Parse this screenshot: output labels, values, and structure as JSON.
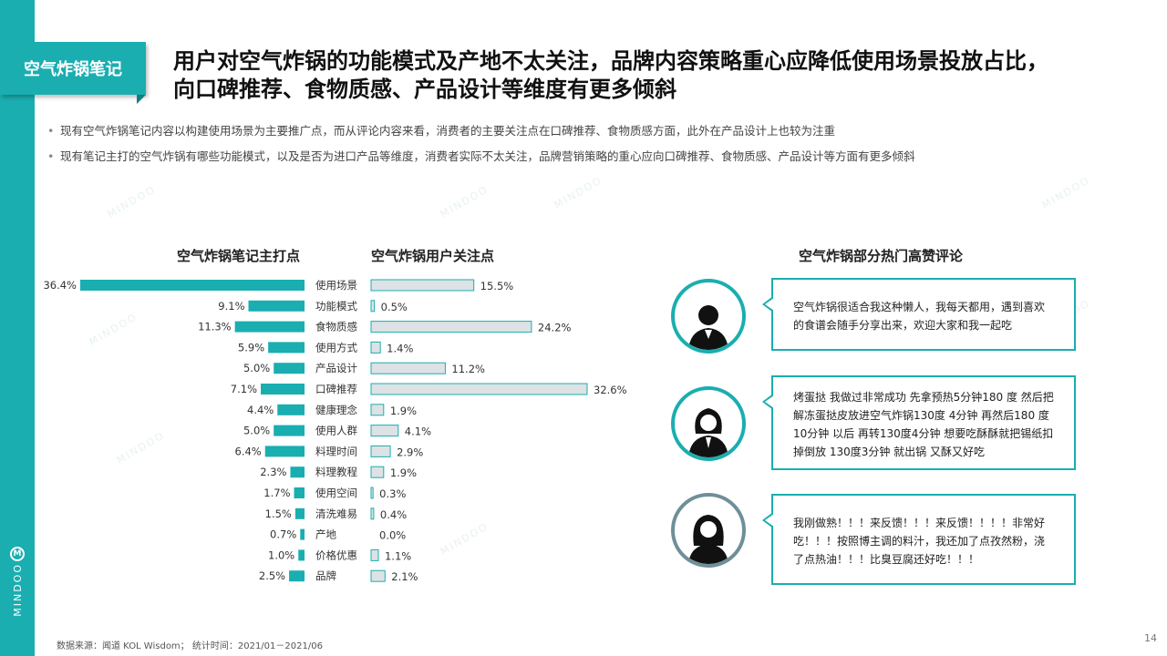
{
  "tag": "空气炸锅笔记",
  "title_line1": "用户对空气炸锅的功能模式及产地不太关注，品牌内容策略重心应降低使用场景投放占比，",
  "title_line2": "向口碑推荐、食物质感、产品设计等维度有更多倾斜",
  "bullets": [
    "现有空气炸锅笔记内容以构建使用场景为主要推广点，而从评论内容来看，消费者的主要关注点在口碑推荐、食物质感方面，此外在产品设计上也较为注重",
    "现有笔记主打的空气炸锅有哪些功能模式，以及是否为进口产品等维度，消费者实际不太关注，品牌营销策略的重心应向口碑推荐、食物质感、产品设计等方面有更多倾斜"
  ],
  "brand_name": "MINDOO",
  "watermark": "MINDOO",
  "chart_data": {
    "type": "bar",
    "categories": [
      "使用场景",
      "功能模式",
      "食物质感",
      "使用方式",
      "产品设计",
      "口碑推荐",
      "健康理念",
      "使用人群",
      "料理时间",
      "料理教程",
      "使用空间",
      "清洗难易",
      "产地",
      "价格优惠",
      "品牌"
    ],
    "series": [
      {
        "name": "空气炸锅笔记主打点",
        "values": [
          36.4,
          9.1,
          11.3,
          5.9,
          5.0,
          7.1,
          4.4,
          5.0,
          6.4,
          2.3,
          1.7,
          1.5,
          0.7,
          1.0,
          2.5
        ],
        "labels": [
          "36.4%",
          "9.1%",
          "11.3%",
          "5.9%",
          "5.0%",
          "7.1%",
          "4.4%",
          "5.0%",
          "6.4%",
          "2.3%",
          "1.7%",
          "1.5%",
          "0.7%",
          "1.0%",
          "2.5%"
        ],
        "color": "#1aaeb0"
      },
      {
        "name": "空气炸锅用户关注点",
        "values": [
          15.5,
          0.5,
          24.2,
          1.4,
          11.2,
          32.6,
          1.9,
          4.1,
          2.9,
          1.9,
          0.3,
          0.4,
          0.0,
          1.1,
          2.1
        ],
        "labels": [
          "15.5%",
          "0.5%",
          "24.2%",
          "1.4%",
          "11.2%",
          "32.6%",
          "1.9%",
          "4.1%",
          "2.9%",
          "1.9%",
          "0.3%",
          "0.4%",
          "0.0%",
          "1.1%",
          "2.1%"
        ],
        "color": "#dde2e5",
        "stroke": "#1aaeb0"
      }
    ]
  },
  "reviews_title": "空气炸锅部分热门高赞评论",
  "reviews": [
    {
      "text": "空气炸锅很适合我这种懒人，我每天都用，遇到喜欢的食谱会随手分享出来，欢迎大家和我一起吃"
    },
    {
      "text": "烤蛋挞 我做过非常成功  先拿预热5分钟180 度  然后把解冻蛋挞皮放进空气炸锅130度  4分钟     再然后180  度10分钟  以后  再转130度4分钟   想要吃酥酥就把锡纸扣掉倒放 130度3分钟 就出锅 又酥又好吃"
    },
    {
      "text": "我刚做熟！！！来反馈！！！来反馈！！！！非常好吃！！！按照博主调的料汁，我还加了点孜然粉，浇了点热油！！！比臭豆腐还好吃！！！"
    }
  ],
  "source": "数据来源：闻道 KOL Wisdom；  统计时间：2021/01－2021/06",
  "page_number": "14"
}
